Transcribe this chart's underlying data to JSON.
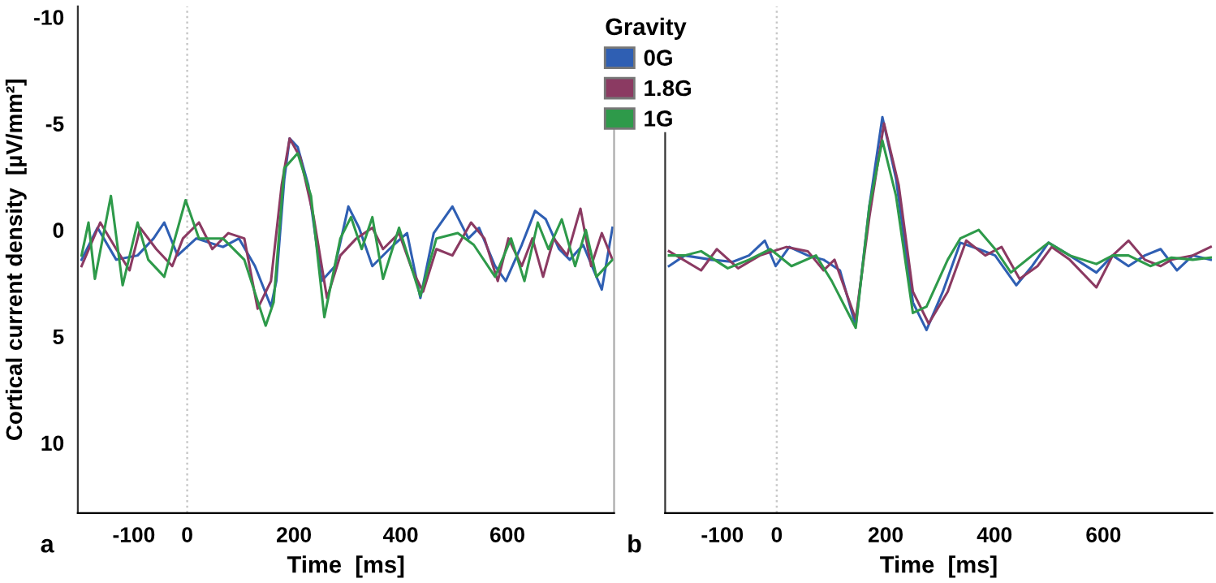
{
  "chart_data": [
    {
      "type": "line",
      "ylabel": "Cortical current density  [µV/mm²]",
      "xlabel": "Time  [ms]",
      "annotations": [
        "a"
      ],
      "xlim": [
        -205,
        800
      ],
      "ylim": [
        13.3,
        -10.5
      ],
      "xticks": [
        -100,
        0,
        200,
        400,
        600
      ],
      "yticks": [
        -10,
        -5,
        0,
        5,
        10
      ],
      "grid": false,
      "legend": false,
      "marker": "none",
      "line_style": "solid",
      "ref_lines": [
        {
          "axis": "x",
          "value": 0,
          "color": "#c8c8c8",
          "line_style": "dotted"
        }
      ],
      "series": [
        {
          "color": "#2f5fb3",
          "x": [
            -198,
            -168,
            -133,
            -93,
            -63,
            -43,
            -18,
            17,
            67,
            97,
            127,
            157,
            167,
            182,
            192,
            207,
            227,
            252,
            277,
            302,
            322,
            347,
            387,
            412,
            437,
            462,
            497,
            527,
            547,
            577,
            597,
            627,
            652,
            672,
            697,
            717,
            742,
            777,
            797
          ],
          "values": [
            1.4,
            -0.1,
            1.4,
            1.2,
            0.4,
            -0.35,
            1.2,
            0.4,
            0.8,
            0.4,
            1.7,
            3.6,
            2.4,
            -2.4,
            -4.3,
            -3.9,
            -2.1,
            2.4,
            1.7,
            -1.1,
            -0.1,
            1.7,
            0.7,
            0.15,
            3.2,
            0.15,
            -1.1,
            0.4,
            -0.1,
            1.7,
            2.4,
            0.7,
            -0.9,
            -0.5,
            0.9,
            1.4,
            0.7,
            2.8,
            -0.1
          ]
        },
        {
          "color": "#8b3a62",
          "x": [
            -198,
            -163,
            -133,
            -108,
            -88,
            -58,
            -28,
            -8,
            22,
            47,
            77,
            107,
            132,
            157,
            177,
            192,
            212,
            237,
            262,
            287,
            317,
            347,
            367,
            397,
            422,
            442,
            467,
            497,
            532,
            557,
            582,
            602,
            627,
            647,
            667,
            687,
            712,
            737,
            757,
            777,
            797
          ],
          "values": [
            1.7,
            -0.35,
            0.9,
            1.9,
            -0.1,
            0.9,
            1.7,
            0.4,
            -0.35,
            0.9,
            0.15,
            0.4,
            3.7,
            2.4,
            -2.1,
            -4.3,
            -3.4,
            -0.6,
            3.2,
            1.2,
            0.4,
            -0.1,
            0.9,
            0.15,
            1.9,
            2.9,
            0.9,
            1.2,
            -0.35,
            0.4,
            2.4,
            0.4,
            1.7,
            0.4,
            2.2,
            0.4,
            1.2,
            -1.0,
            1.7,
            0.15,
            1.4
          ]
        },
        {
          "color": "#2e9a4a",
          "x": [
            -198,
            -185,
            -173,
            -143,
            -121,
            -93,
            -73,
            -43,
            -3,
            22,
            67,
            107,
            147,
            162,
            182,
            207,
            232,
            257,
            287,
            307,
            327,
            347,
            367,
            397,
            437,
            467,
            507,
            537,
            577,
            607,
            632,
            657,
            677,
            702,
            727,
            747,
            767,
            797
          ],
          "values": [
            1.2,
            -0.35,
            2.3,
            -1.6,
            2.6,
            -0.35,
            1.4,
            2.2,
            -1.4,
            0.4,
            0.4,
            1.4,
            4.5,
            3.4,
            -2.9,
            -3.6,
            -1.6,
            4.1,
            0.4,
            -0.6,
            0.9,
            -0.6,
            2.3,
            -0.1,
            3.1,
            0.4,
            0.15,
            0.7,
            2.2,
            0.4,
            2.4,
            -0.35,
            0.9,
            -0.5,
            1.7,
            0.0,
            2.2,
            1.4
          ]
        }
      ]
    },
    {
      "type": "line",
      "xlabel": "Time  [ms]",
      "annotations": [
        "b"
      ],
      "xlim": [
        -205,
        800
      ],
      "ylim": [
        13.3,
        -10.5
      ],
      "xticks": [
        -100,
        0,
        200,
        400,
        600
      ],
      "tick_labels": "x",
      "grid": false,
      "legend": "top left",
      "legend_title": "Gravity",
      "marker": "none",
      "line_style": "solid",
      "ref_lines": [
        {
          "axis": "x",
          "value": 0,
          "color": "#c8c8c8",
          "line_style": "dotted"
        }
      ],
      "series": [
        {
          "name": "0G",
          "color": "#2f5fb3",
          "x": [
            -198,
            -169,
            -120,
            -81,
            -51,
            -22,
            -2,
            23,
            57,
            86,
            116,
            145,
            170,
            194,
            219,
            250,
            275,
            305,
            337,
            371,
            401,
            440,
            469,
            499,
            538,
            587,
            617,
            646,
            676,
            705,
            735,
            764,
            797
          ],
          "values": [
            1.7,
            1.2,
            1.4,
            1.5,
            1.2,
            0.5,
            1.7,
            0.8,
            1.2,
            1.4,
            1.9,
            4.5,
            -1.1,
            -5.3,
            -2.4,
            3.4,
            4.7,
            2.9,
            0.6,
            0.9,
            1.2,
            2.6,
            1.7,
            0.6,
            1.2,
            2.0,
            1.2,
            1.7,
            1.2,
            0.9,
            1.9,
            1.2,
            1.4
          ]
        },
        {
          "name": "1.8G",
          "color": "#8b3a62",
          "x": [
            -198,
            -139,
            -110,
            -71,
            -31,
            18,
            57,
            86,
            106,
            145,
            170,
            197,
            224,
            250,
            279,
            314,
            348,
            383,
            413,
            446,
            479,
            505,
            538,
            587,
            617,
            646,
            676,
            705,
            725,
            764,
            797
          ],
          "values": [
            1.0,
            1.9,
            0.9,
            1.8,
            1.2,
            0.8,
            1.0,
            1.9,
            1.4,
            4.2,
            -0.6,
            -5.0,
            -2.1,
            2.9,
            4.4,
            2.9,
            0.5,
            1.2,
            0.8,
            2.3,
            1.7,
            0.8,
            1.4,
            2.7,
            1.2,
            0.5,
            1.4,
            1.7,
            1.4,
            1.2,
            0.8
          ]
        },
        {
          "name": "1G",
          "color": "#2e9a4a",
          "x": [
            -198,
            -169,
            -139,
            -90,
            -51,
            -12,
            27,
            72,
            101,
            145,
            170,
            194,
            219,
            250,
            275,
            314,
            337,
            371,
            401,
            430,
            469,
            499,
            538,
            587,
            617,
            646,
            686,
            725,
            764,
            797
          ],
          "values": [
            1.2,
            1.2,
            1.0,
            1.8,
            1.4,
            0.9,
            1.7,
            1.2,
            2.4,
            4.6,
            -1.1,
            -4.2,
            -1.6,
            3.9,
            3.6,
            1.4,
            0.4,
            0.0,
            0.9,
            2.0,
            1.2,
            0.6,
            1.2,
            1.6,
            1.2,
            1.2,
            1.7,
            1.3,
            1.4,
            1.3
          ]
        }
      ]
    }
  ]
}
